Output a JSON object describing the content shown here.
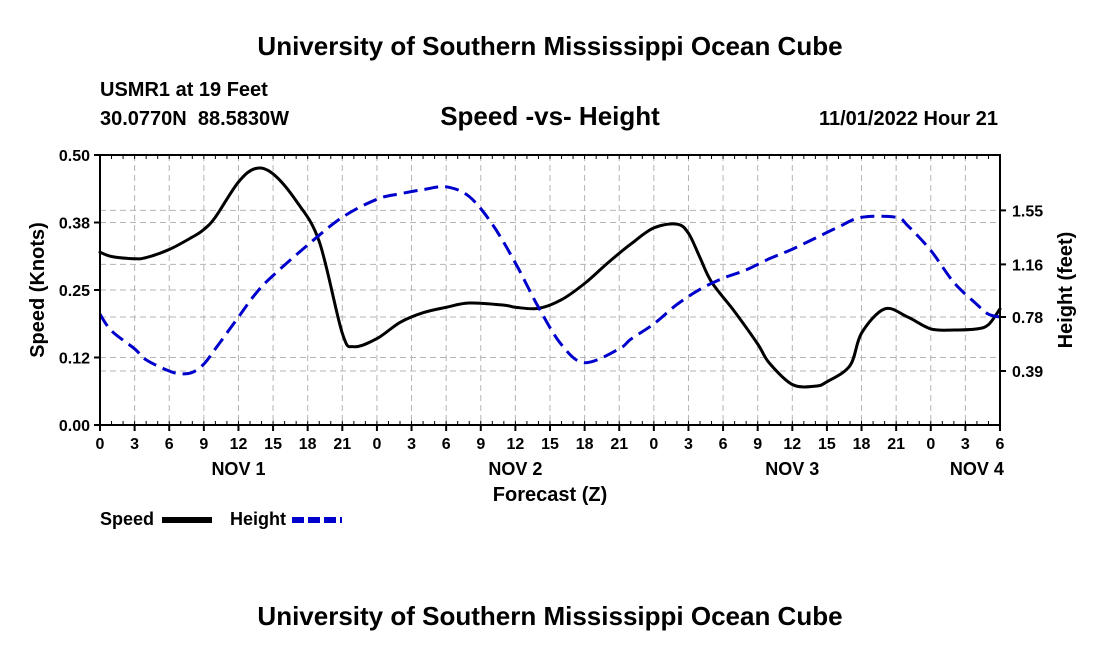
{
  "chart_data": {
    "type": "line",
    "title": "University of Southern Mississippi Ocean Cube",
    "footer_title": "University of Southern Mississippi Ocean Cube",
    "station_label": "USMR1 at 19 Feet",
    "coordinates": "30.0770N  88.5830W",
    "subtitle": "Speed -vs- Height",
    "timestamp": "11/01/2022 Hour 21",
    "xlabel": "Forecast (Z)",
    "ylabel_left": "Speed (Knots)",
    "ylabel_right": "Height (feet)",
    "x_hours_range": [
      0,
      78
    ],
    "x_tick_hours": [
      0,
      3,
      6,
      9,
      12,
      15,
      18,
      21,
      24,
      27,
      30,
      33,
      36,
      39,
      42,
      45,
      48,
      51,
      54,
      57,
      60,
      63,
      66,
      69,
      72,
      75,
      78
    ],
    "x_tick_labels": [
      "0",
      "3",
      "6",
      "9",
      "12",
      "15",
      "18",
      "21",
      "0",
      "3",
      "6",
      "9",
      "12",
      "15",
      "18",
      "21",
      "0",
      "3",
      "6",
      "9",
      "12",
      "15",
      "18",
      "21",
      "0",
      "3",
      "6"
    ],
    "date_labels": [
      {
        "hour": 12,
        "label": "NOV 1"
      },
      {
        "hour": 36,
        "label": "NOV 2"
      },
      {
        "hour": 60,
        "label": "NOV 3"
      },
      {
        "hour": 76,
        "label": "NOV 4"
      }
    ],
    "y_left": {
      "range": [
        0,
        0.5
      ],
      "ticks": [
        0.0,
        0.125,
        0.25,
        0.375,
        0.5
      ],
      "tick_labels": [
        "0.00",
        "0.12",
        "0.25",
        "0.38",
        "0.50"
      ]
    },
    "y_right": {
      "range": [
        0.0,
        1.95
      ],
      "ticks": [
        0.39,
        0.78,
        1.16,
        1.55
      ],
      "tick_labels": [
        "0.39",
        "0.78",
        "1.16",
        "1.55"
      ]
    },
    "series": [
      {
        "name": "Speed",
        "axis": "left",
        "color": "#000000",
        "dash": "solid",
        "x": [
          0,
          1,
          3,
          4,
          6,
          8,
          9,
          10,
          12,
          13.5,
          15,
          17,
          19,
          21,
          22,
          24,
          26,
          28,
          30,
          32,
          35,
          36,
          38,
          40,
          42,
          44,
          46,
          48,
          50,
          51,
          52,
          53,
          55,
          57,
          58,
          60,
          62,
          63,
          65,
          66,
          68,
          70,
          72,
          74,
          76,
          77,
          78
        ],
        "y": [
          0.32,
          0.312,
          0.308,
          0.31,
          0.325,
          0.348,
          0.362,
          0.385,
          0.45,
          0.475,
          0.465,
          0.415,
          0.34,
          0.17,
          0.145,
          0.16,
          0.19,
          0.208,
          0.218,
          0.226,
          0.222,
          0.218,
          0.216,
          0.232,
          0.262,
          0.3,
          0.335,
          0.365,
          0.372,
          0.355,
          0.31,
          0.265,
          0.21,
          0.15,
          0.115,
          0.075,
          0.072,
          0.08,
          0.11,
          0.17,
          0.215,
          0.2,
          0.178,
          0.176,
          0.178,
          0.186,
          0.215
        ]
      },
      {
        "name": "Height",
        "axis": "right",
        "color": "#0000cc",
        "dash": "dashed",
        "x": [
          0,
          1,
          3,
          4,
          6,
          7,
          8,
          9,
          10,
          12,
          13.5,
          15,
          18,
          21,
          24,
          26,
          28,
          30,
          32,
          34,
          36,
          38,
          40,
          42,
          45,
          46,
          48,
          50,
          52,
          54,
          56,
          58,
          60,
          62,
          64,
          66,
          69,
          70,
          72,
          74,
          76,
          77,
          78
        ],
        "y": [
          0.8,
          0.68,
          0.55,
          0.47,
          0.39,
          0.37,
          0.38,
          0.44,
          0.55,
          0.78,
          0.95,
          1.08,
          1.3,
          1.5,
          1.63,
          1.67,
          1.7,
          1.72,
          1.65,
          1.45,
          1.17,
          0.85,
          0.58,
          0.45,
          0.55,
          0.62,
          0.73,
          0.87,
          0.98,
          1.06,
          1.12,
          1.2,
          1.27,
          1.35,
          1.43,
          1.5,
          1.5,
          1.44,
          1.26,
          1.03,
          0.87,
          0.8,
          0.78
        ]
      }
    ],
    "legend": {
      "position": "bottom-left",
      "items": [
        {
          "label": "Speed",
          "color": "#000000",
          "dash": "solid"
        },
        {
          "label": "Height",
          "color": "#0000cc",
          "dash": "dashed"
        }
      ]
    },
    "grid": true
  }
}
